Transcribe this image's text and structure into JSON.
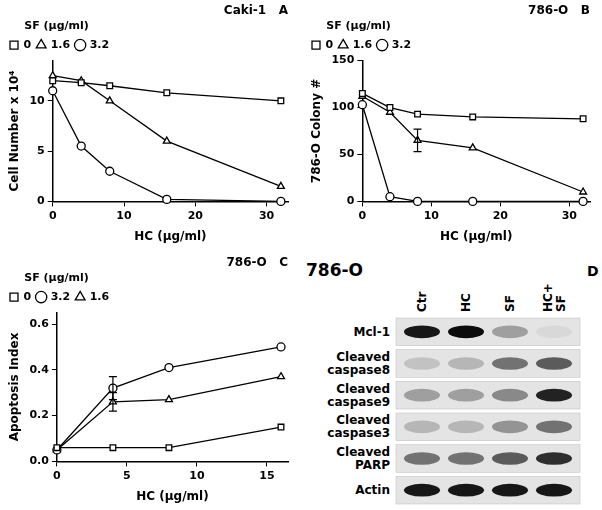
{
  "chart_data": [
    {
      "type": "line",
      "title": "Caki-1",
      "panel": "A",
      "x_label": "HC (µg/ml)",
      "y_label": "Cell Number x 10⁴",
      "legend_title": "SF (µg/ml)",
      "legend": "top-left",
      "grid": false,
      "xlim": [
        0,
        33
      ],
      "xticks": [
        0,
        10,
        20,
        30
      ],
      "ylim": [
        0,
        14
      ],
      "yticks": [
        0,
        5,
        10
      ],
      "x": [
        0,
        4,
        8,
        16,
        32
      ],
      "series": [
        {
          "name": "0",
          "color": "#000000",
          "marker": "square",
          "line_style": "solid",
          "values": [
            12,
            11.8,
            11.5,
            10.8,
            10.0
          ]
        },
        {
          "name": "1.6",
          "color": "#000000",
          "marker": "triangle",
          "line_style": "solid",
          "values": [
            12.5,
            12,
            10,
            6,
            1.5
          ]
        },
        {
          "name": "3.2",
          "color": "#000000",
          "marker": "circle",
          "line_style": "solid",
          "values": [
            11,
            5.5,
            3,
            0.2,
            0
          ]
        }
      ]
    },
    {
      "type": "line",
      "title": "786-O",
      "panel": "B",
      "x_label": "HC (µg/ml)",
      "y_label": "786-O Colony #",
      "legend_title": "SF (µg/ml)",
      "legend": "top-left",
      "grid": false,
      "xlim": [
        0,
        33
      ],
      "xticks": [
        0,
        10,
        20,
        30
      ],
      "ylim": [
        0,
        150
      ],
      "yticks": [
        0,
        50,
        100,
        150
      ],
      "x": [
        0,
        4,
        8,
        16,
        32
      ],
      "series": [
        {
          "name": "0",
          "color": "#000000",
          "marker": "square",
          "line_style": "solid",
          "values": [
            115,
            100,
            93,
            90,
            88
          ]
        },
        {
          "name": "1.6",
          "color": "#000000",
          "marker": "triangle",
          "line_style": "solid",
          "values": [
            112,
            95,
            65,
            57,
            10
          ],
          "errors": [
            null,
            null,
            12,
            null,
            null
          ]
        },
        {
          "name": "3.2",
          "color": "#000000",
          "marker": "circle",
          "line_style": "solid",
          "values": [
            103,
            5,
            0,
            0,
            0
          ]
        }
      ]
    },
    {
      "type": "line",
      "title": "786-O",
      "panel": "C",
      "x_label": "HC (µg/ml)",
      "y_label": "Apoptosis Index",
      "legend_title": "SF (µg/ml)",
      "legend": "top-left",
      "grid": false,
      "xlim": [
        0,
        16.5
      ],
      "xticks": [
        0,
        5,
        10,
        15
      ],
      "ylim": [
        0,
        0.65
      ],
      "yticks": [
        {
          "value": 0,
          "label": "0.0"
        },
        0.2,
        0.4,
        0.6
      ],
      "x": [
        0,
        4,
        8,
        16
      ],
      "series": [
        {
          "name": "0",
          "color": "#000000",
          "marker": "square",
          "line_style": "solid",
          "values": [
            0.06,
            0.06,
            0.06,
            0.15
          ]
        },
        {
          "name": "3.2",
          "color": "#000000",
          "marker": "circle",
          "line_style": "solid",
          "values": [
            0.05,
            0.32,
            0.41,
            0.5
          ],
          "errors": [
            null,
            0.05,
            null,
            null
          ]
        },
        {
          "name": "1.6",
          "color": "#000000",
          "marker": "triangle",
          "line_style": "solid",
          "values": [
            0.05,
            0.26,
            0.27,
            0.37
          ],
          "errors": [
            null,
            0.04,
            null,
            null
          ]
        }
      ]
    }
  ],
  "blot": {
    "title": "786-O",
    "panel": "D",
    "lanes": [
      "Ctr",
      "HC",
      "SF",
      "HC+ SF"
    ],
    "rows": [
      {
        "label": "Mcl-1",
        "intensities": [
          0.9,
          0.95,
          0.3,
          0.05
        ]
      },
      {
        "label": "Cleaved caspase8",
        "intensities": [
          0.15,
          0.2,
          0.5,
          0.6
        ]
      },
      {
        "label": "Cleaved caspase9",
        "intensities": [
          0.3,
          0.3,
          0.4,
          0.85
        ]
      },
      {
        "label": "Cleaved caspase3",
        "intensities": [
          0.2,
          0.2,
          0.35,
          0.5
        ]
      },
      {
        "label": "Cleaved PARP",
        "intensities": [
          0.5,
          0.5,
          0.6,
          0.8
        ]
      },
      {
        "label": "Actin",
        "intensities": [
          0.9,
          0.9,
          0.9,
          0.9
        ]
      }
    ]
  }
}
